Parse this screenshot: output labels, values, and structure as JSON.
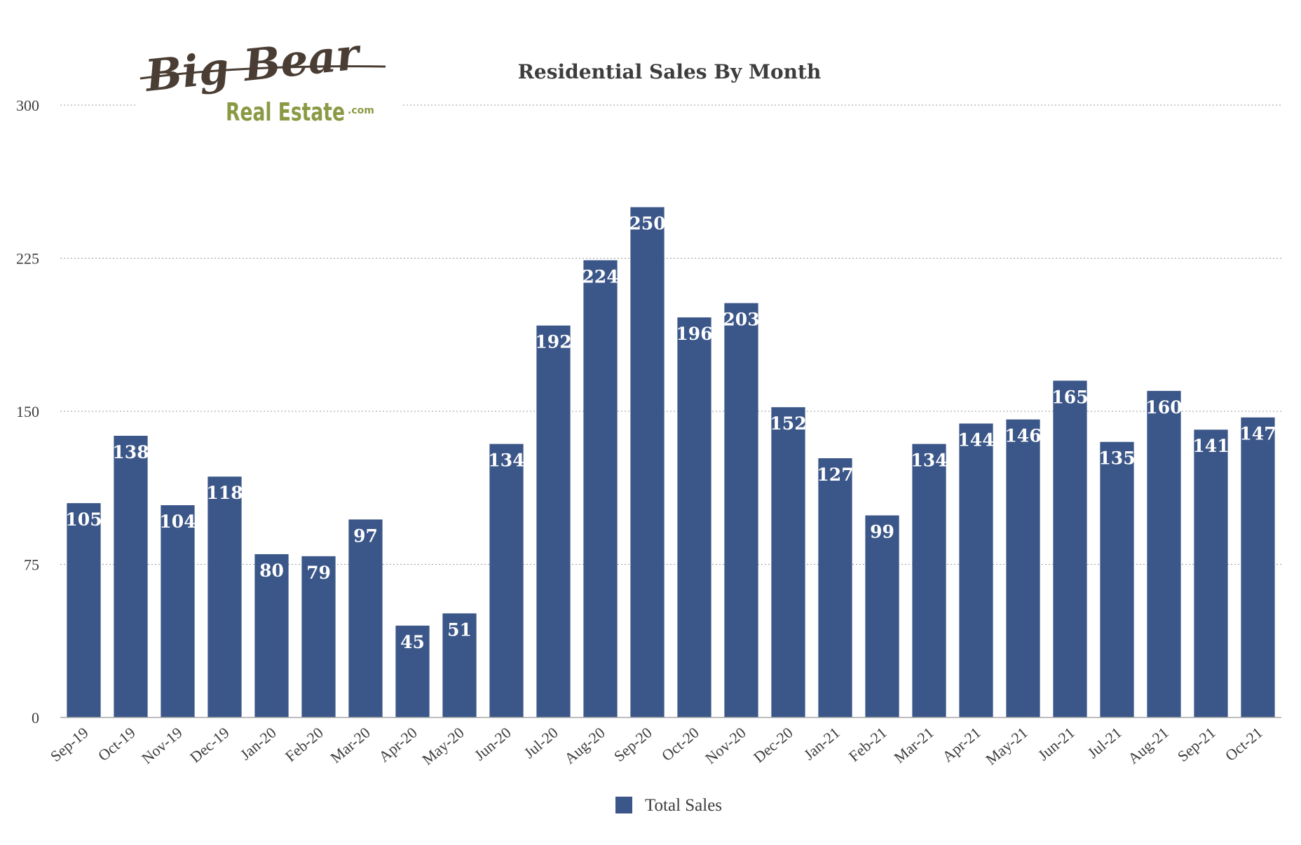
{
  "logo": {
    "line1": "Big Bear",
    "line2": "Real Estate",
    "suffix": ".com"
  },
  "chart_data": {
    "type": "bar",
    "title": "Residential Sales By Month",
    "xlabel": "",
    "ylabel": "",
    "ylim": [
      0,
      300
    ],
    "yticks": [
      0,
      75,
      150,
      225,
      300
    ],
    "grid": true,
    "legend_position": "bottom-center",
    "categories": [
      "Sep-19",
      "Oct-19",
      "Nov-19",
      "Dec-19",
      "Jan-20",
      "Feb-20",
      "Mar-20",
      "Apr-20",
      "May-20",
      "Jun-20",
      "Jul-20",
      "Aug-20",
      "Sep-20",
      "Oct-20",
      "Nov-20",
      "Dec-20",
      "Jan-21",
      "Feb-21",
      "Mar-21",
      "Apr-21",
      "May-21",
      "Jun-21",
      "Jul-21",
      "Aug-21",
      "Sep-21",
      "Oct-21"
    ],
    "series": [
      {
        "name": "Total Sales",
        "color": "#3b5688",
        "values": [
          105,
          138,
          104,
          118,
          80,
          79,
          97,
          45,
          51,
          134,
          192,
          224,
          250,
          196,
          203,
          152,
          127,
          99,
          134,
          144,
          146,
          165,
          135,
          160,
          141,
          147
        ]
      }
    ]
  }
}
